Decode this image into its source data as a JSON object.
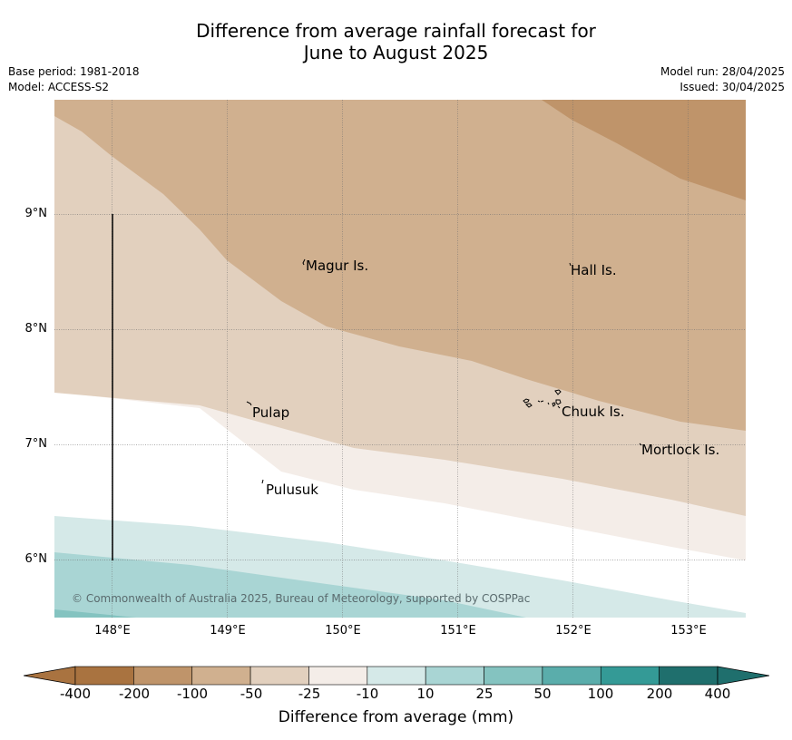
{
  "title": {
    "line1": "Difference from average rainfall forecast for",
    "line2": "June to August 2025"
  },
  "meta_left": {
    "base_period": "Base period: 1981-2018",
    "model": "Model: ACCESS-S2"
  },
  "meta_right": {
    "model_run": "Model run: 28/04/2025",
    "issued": "Issued: 30/04/2025"
  },
  "map": {
    "lon_range": [
      147.5,
      153.5
    ],
    "lat_range": [
      5.5,
      10.0
    ],
    "lat_ticks": [
      "9°N",
      "8°N",
      "7°N",
      "6°N"
    ],
    "lon_ticks": [
      "148°E",
      "149°E",
      "150°E",
      "151°E",
      "152°E",
      "153°E"
    ],
    "islands": [
      {
        "name": "Magur Is."
      },
      {
        "name": "Hall Is."
      },
      {
        "name": "Pulap"
      },
      {
        "name": "Chuuk Is."
      },
      {
        "name": "Mortlock Is."
      },
      {
        "name": "Pulusuk"
      }
    ],
    "copyright": "© Commonwealth of Australia 2025, Bureau of Meteorology, supported by COSPPac"
  },
  "colorbar": {
    "label": "Difference from average (mm)",
    "ticks": [
      "-400",
      "-200",
      "-100",
      "-50",
      "-25",
      "-10",
      "10",
      "25",
      "50",
      "100",
      "200",
      "400"
    ],
    "colors": [
      "#a97340",
      "#bf946a",
      "#d0b08f",
      "#e2d0be",
      "#f4ede8",
      "#ffffff",
      "#d5e9e8",
      "#a9d5d4",
      "#84c3c0",
      "#5aadab",
      "#349a96",
      "#1f6f6d"
    ]
  }
}
